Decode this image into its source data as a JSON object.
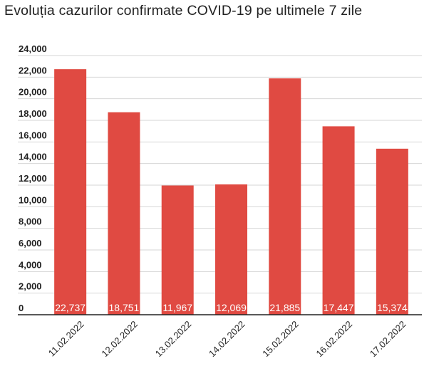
{
  "chart_data": {
    "type": "bar",
    "title": "Evoluția cazurilor confirmate COVID-19 pe ultimele 7 zile",
    "categories": [
      "11.02.2022",
      "12.02.2022",
      "13.02.2022",
      "14.02.2022",
      "15.02.2022",
      "16.02.2022",
      "17.02.2022"
    ],
    "values": [
      22737,
      18751,
      11967,
      12069,
      21885,
      17447,
      15374
    ],
    "data_labels": [
      "22,737",
      "18,751",
      "11,967",
      "12,069",
      "21,885",
      "17,447",
      "15,374"
    ],
    "xlabel": "",
    "ylabel": "",
    "ylim": [
      0,
      24000
    ],
    "yticks": [
      0,
      2000,
      4000,
      6000,
      8000,
      10000,
      12000,
      14000,
      16000,
      18000,
      20000,
      22000,
      24000
    ],
    "ytick_labels": [
      "0",
      "2,000",
      "4,000",
      "6,000",
      "8,000",
      "10,000",
      "12,000",
      "14,000",
      "16,000",
      "18,000",
      "20,000",
      "22,000",
      "24,000"
    ],
    "grid": true,
    "legend": "none",
    "bar_color": "#e04a42",
    "label_color": "#ffffff"
  }
}
